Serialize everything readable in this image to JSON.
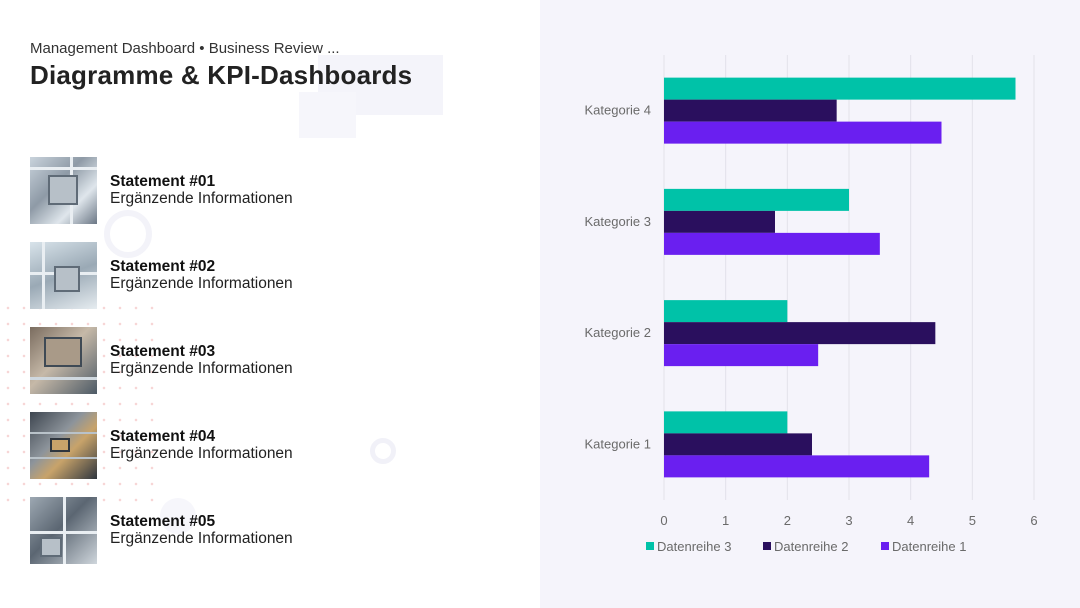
{
  "header": {
    "subtitle": "Management Dashboard • Business Review ...",
    "title": "Diagramme & KPI-Dashboards"
  },
  "statements": [
    {
      "heading": "Statement #01",
      "detail": "Ergänzende Informationen"
    },
    {
      "heading": "Statement #02",
      "detail": "Ergänzende Informationen"
    },
    {
      "heading": "Statement #03",
      "detail": "Ergänzende Informationen"
    },
    {
      "heading": "Statement #04",
      "detail": "Ergänzende Informationen"
    },
    {
      "heading": "Statement #05",
      "detail": "Ergänzende Informationen"
    }
  ],
  "colors": {
    "series1": "#6a1ff0",
    "series2": "#2a0f5e",
    "series3": "#00c2a8",
    "chart_bg": "#f5f4fb",
    "grid": "#e2e2ea"
  },
  "chart_data": {
    "type": "bar",
    "orientation": "horizontal",
    "categories": [
      "Kategorie 1",
      "Kategorie 2",
      "Kategorie 3",
      "Kategorie 4"
    ],
    "series": [
      {
        "name": "Datenreihe 1",
        "values": [
          4.3,
          2.5,
          3.5,
          4.5
        ]
      },
      {
        "name": "Datenreihe 2",
        "values": [
          2.4,
          4.4,
          1.8,
          2.8
        ]
      },
      {
        "name": "Datenreihe 3",
        "values": [
          2.0,
          2.0,
          3.0,
          5.7
        ]
      }
    ],
    "xlim": [
      0,
      6
    ],
    "xticks": [
      "0",
      "1",
      "2",
      "3",
      "4",
      "5",
      "6"
    ],
    "grid": true,
    "legend_position": "bottom",
    "legend_order": [
      "Datenreihe 3",
      "Datenreihe 2",
      "Datenreihe 1"
    ]
  }
}
